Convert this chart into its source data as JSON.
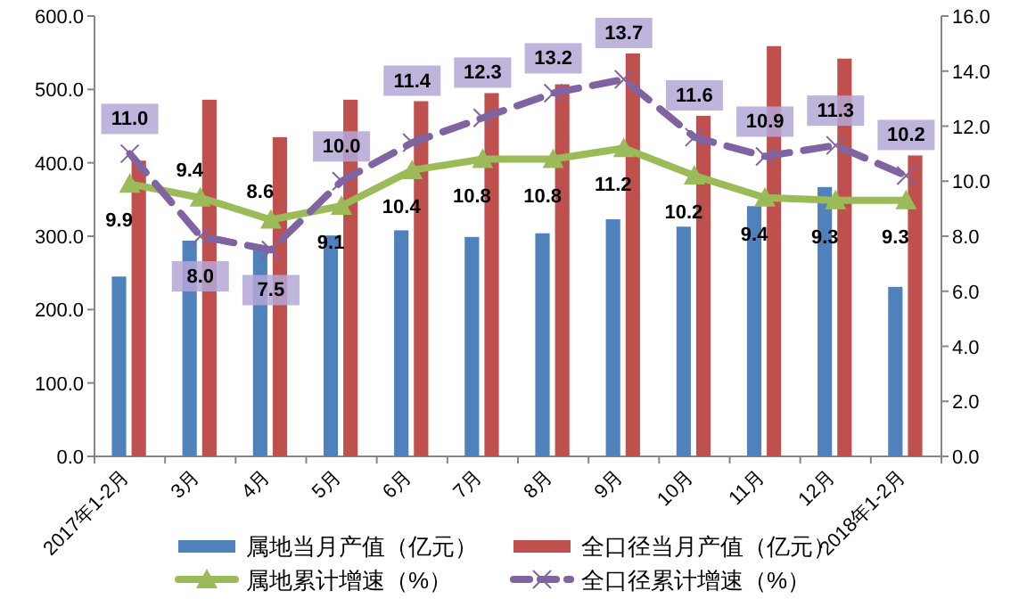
{
  "chart_data": {
    "type": "bar",
    "categories": [
      "2017年1-2月",
      "3月",
      "4月",
      "5月",
      "6月",
      "7月",
      "8月",
      "9月",
      "10月",
      "11月",
      "12月",
      "2018年1-2月"
    ],
    "series": [
      {
        "type": "bar",
        "name": "属地当月产值（亿元）",
        "color": "#4f81bd",
        "values": [
          245,
          294,
          286,
          301,
          308,
          299,
          304,
          323,
          313,
          341,
          367,
          231
        ]
      },
      {
        "type": "bar",
        "name": "全口径当月产值（亿元）",
        "color": "#c0504d",
        "values": [
          403,
          486,
          435,
          486,
          484,
          495,
          507,
          549,
          464,
          559,
          542,
          410
        ]
      },
      {
        "type": "line",
        "name": "属地累计增速（%）",
        "color": "#9bbb59",
        "axis": "y2",
        "marker": "triangle",
        "line_style": "solid",
        "values": [
          9.9,
          9.4,
          8.6,
          9.1,
          10.4,
          10.8,
          10.8,
          11.2,
          10.2,
          9.4,
          9.3,
          9.3
        ],
        "value_labels": [
          "9.9",
          "9.4",
          "8.6",
          "9.1",
          "10.4",
          "10.8",
          "10.8",
          "11.2",
          "10.2",
          "9.4",
          "9.3",
          "9.3"
        ]
      },
      {
        "type": "line",
        "name": "全口径累计增速（%）",
        "color": "#8064a2",
        "axis": "y2",
        "marker": "cross",
        "line_style": "dashed",
        "values": [
          11.0,
          8.0,
          7.5,
          10.0,
          11.4,
          12.3,
          13.2,
          13.7,
          11.6,
          10.9,
          11.3,
          10.2
        ],
        "value_labels": [
          "11.0",
          "8.0",
          "7.5",
          "10.0",
          "11.4",
          "12.3",
          "13.2",
          "13.7",
          "11.6",
          "10.9",
          "11.3",
          "10.2"
        ]
      }
    ],
    "ylim": [
      0,
      600
    ],
    "yticks": [
      {
        "value": 0,
        "label": "0.0"
      },
      {
        "value": 100,
        "label": "100.0"
      },
      {
        "value": 200,
        "label": "200.0"
      },
      {
        "value": 300,
        "label": "300.0"
      },
      {
        "value": 400,
        "label": "400.0"
      },
      {
        "value": 500,
        "label": "500.0"
      },
      {
        "value": 600,
        "label": "600.0"
      }
    ],
    "y2lim": [
      0,
      16
    ],
    "y2ticks": [
      {
        "value": 0,
        "label": "0.0"
      },
      {
        "value": 2,
        "label": "2.0"
      },
      {
        "value": 4,
        "label": "4.0"
      },
      {
        "value": 6,
        "label": "6.0"
      },
      {
        "value": 8,
        "label": "8.0"
      },
      {
        "value": 10,
        "label": "10.0"
      },
      {
        "value": 12,
        "label": "12.0"
      },
      {
        "value": 14,
        "label": "14.0"
      },
      {
        "value": 16,
        "label": "16.0"
      }
    ],
    "legend": "bottom"
  }
}
